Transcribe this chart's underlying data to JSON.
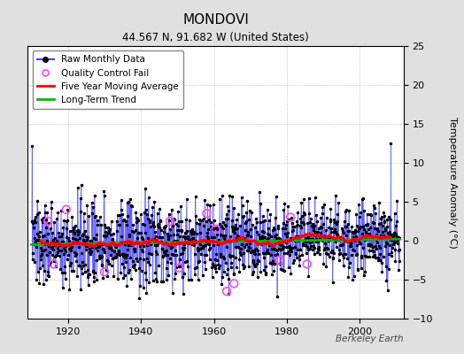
{
  "title": "MONDOVI",
  "subtitle": "44.567 N, 91.682 W (United States)",
  "ylabel": "Temperature Anomaly (°C)",
  "watermark": "Berkeley Earth",
  "year_start": 1910,
  "year_end": 2011,
  "ylim": [
    -10,
    25
  ],
  "yticks": [
    -10,
    -5,
    0,
    5,
    10,
    15,
    20,
    25
  ],
  "raw_line_color": "#4444ff",
  "stem_color": "#8888ff",
  "dot_color": "#000000",
  "moving_avg_color": "#ff0000",
  "trend_color": "#00bb00",
  "qc_fail_color": "#ff44ff",
  "bg_color": "#e0e0e0",
  "plot_bg_color": "#ffffff",
  "legend_fontsize": 7.5,
  "title_fontsize": 11,
  "subtitle_fontsize": 8.5,
  "seed": 137
}
